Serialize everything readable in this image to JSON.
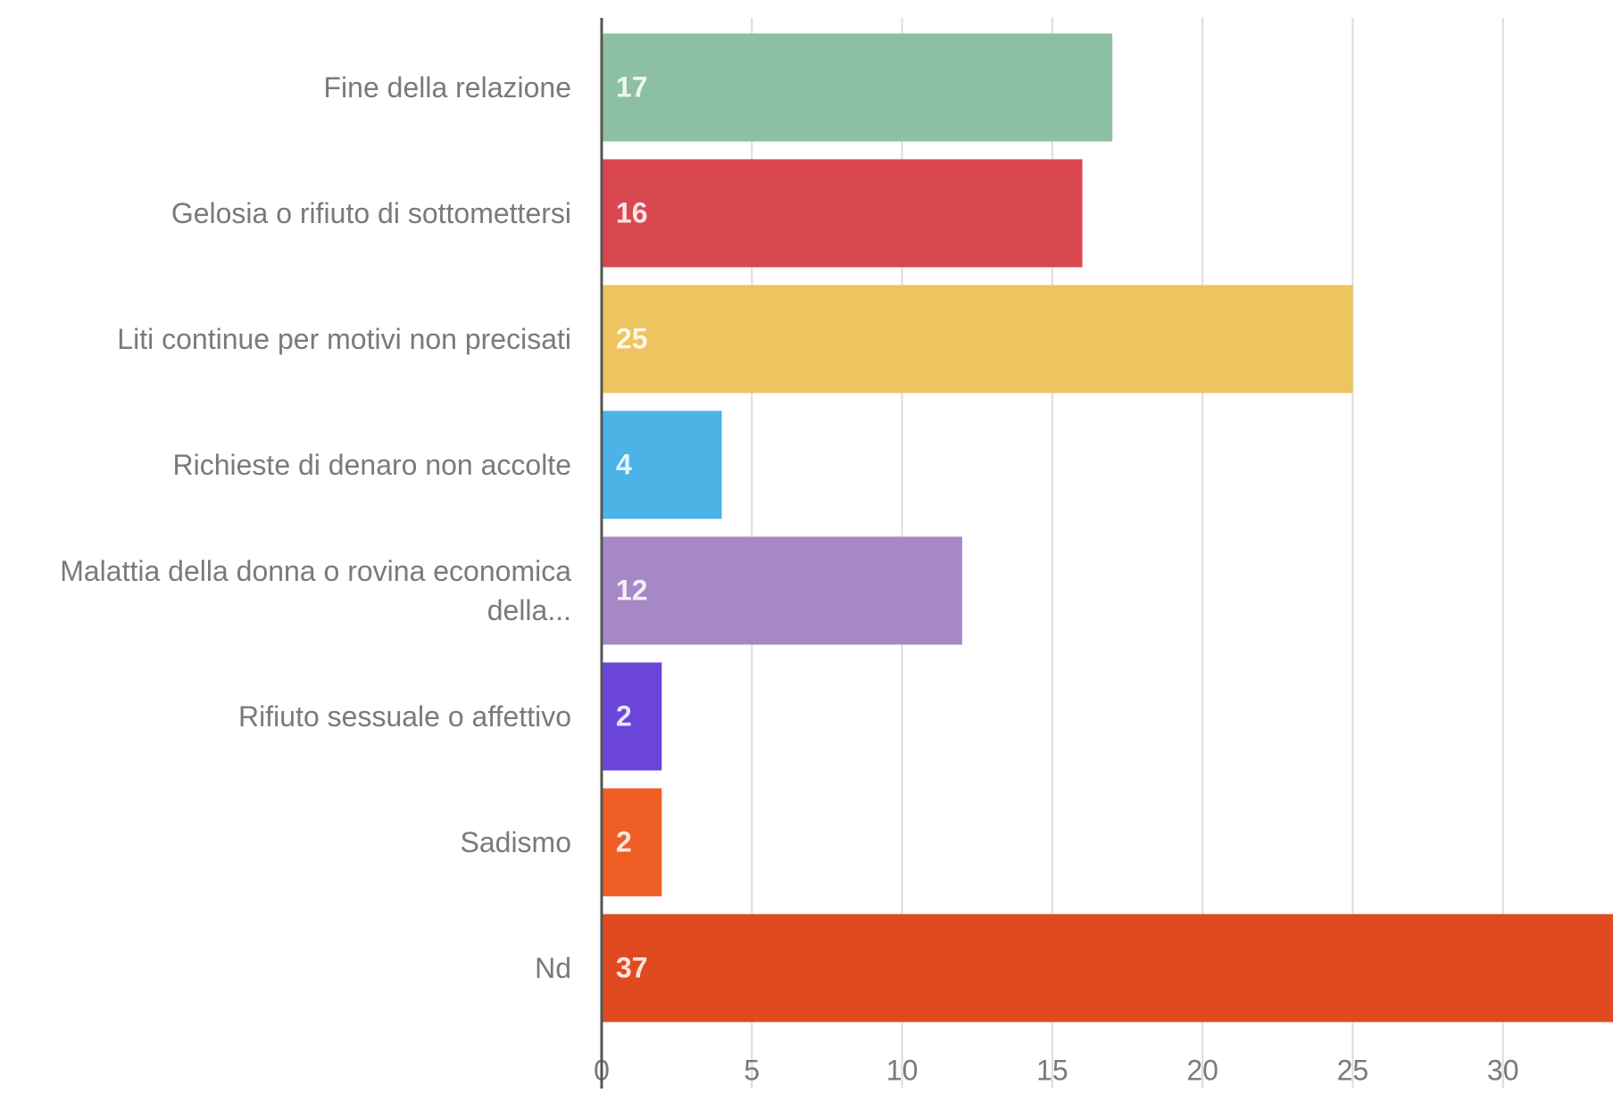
{
  "chart_data": {
    "type": "barh",
    "categories": [
      "Fine della relazione",
      "Gelosia o rifiuto di sottomettersi",
      "Liti continue per motivi non precisati",
      "Richieste di denaro non accolte",
      "Malattia della donna o rovina economica della...",
      "Rifiuto sessuale o affettivo",
      "Sadismo",
      "Nd"
    ],
    "values": [
      17,
      16,
      25,
      4,
      12,
      2,
      2,
      37
    ],
    "colors": [
      "#8dbfa3",
      "#d9474f",
      "#edc45f",
      "#4bb3e6",
      "#a688c7",
      "#6a45d8",
      "#ef5e24",
      "#e04a21"
    ],
    "xlim": [
      0,
      35
    ],
    "xticks": [
      0,
      5,
      10,
      15,
      20,
      25,
      30,
      35
    ],
    "grid": true
  }
}
